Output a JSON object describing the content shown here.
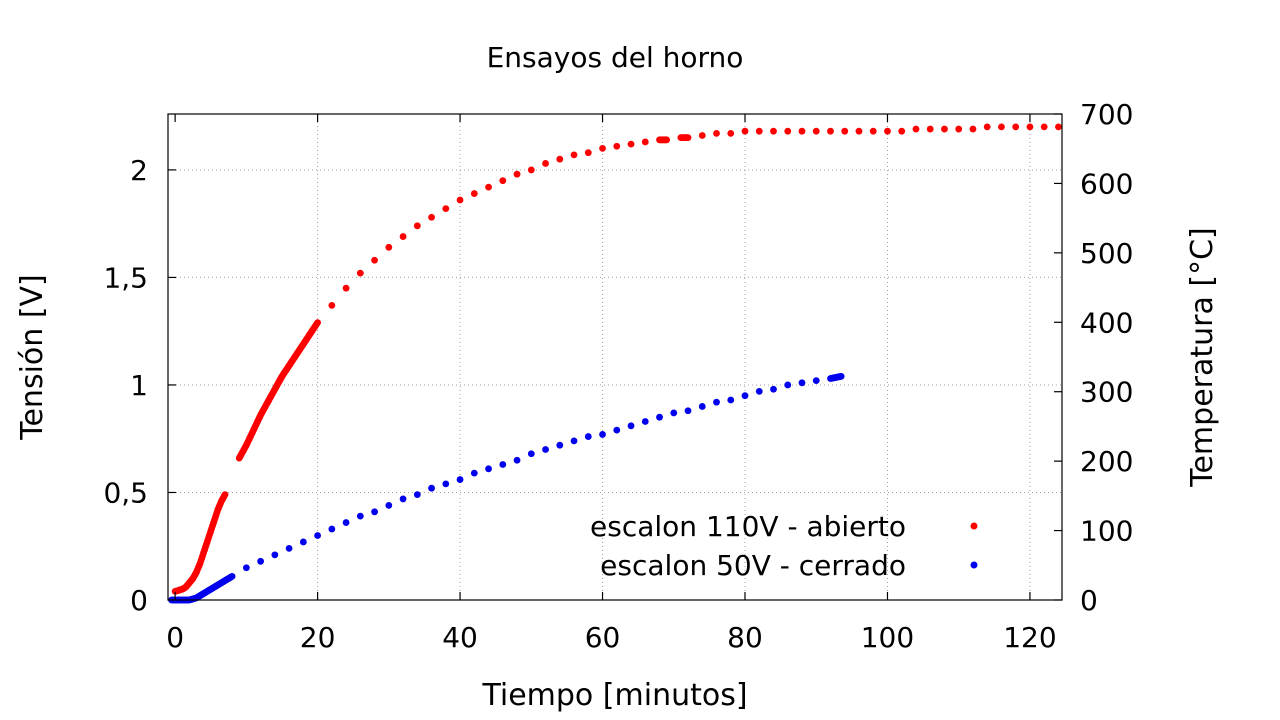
{
  "chart_data": {
    "type": "scatter",
    "title": "Ensayos del horno",
    "xlabel": "Tiempo [minutos]",
    "ylabel": "Tensión [V]",
    "y2label": "Temperatura [°C]",
    "xlim": [
      -1,
      124.5
    ],
    "ylim": [
      0,
      2.26
    ],
    "y2lim": [
      0,
      700
    ],
    "grid": true,
    "legend_position": "bottom-right",
    "x_ticks": [
      {
        "value": 0,
        "label": "0"
      },
      {
        "value": 20,
        "label": "20"
      },
      {
        "value": 40,
        "label": "40"
      },
      {
        "value": 60,
        "label": "60"
      },
      {
        "value": 80,
        "label": "80"
      },
      {
        "value": 100,
        "label": "100"
      },
      {
        "value": 120,
        "label": "120"
      }
    ],
    "y_ticks": [
      {
        "value": 0,
        "label": "0"
      },
      {
        "value": 0.5,
        "label": "0,5"
      },
      {
        "value": 1,
        "label": "1"
      },
      {
        "value": 1.5,
        "label": "1,5"
      },
      {
        "value": 2,
        "label": "2"
      }
    ],
    "y2_ticks": [
      {
        "value": 0,
        "label": "0"
      },
      {
        "value": 100,
        "label": "100"
      },
      {
        "value": 200,
        "label": "200"
      },
      {
        "value": 300,
        "label": "300"
      },
      {
        "value": 400,
        "label": "400"
      },
      {
        "value": 500,
        "label": "500"
      },
      {
        "value": 600,
        "label": "600"
      },
      {
        "value": 700,
        "label": "700"
      }
    ],
    "series": [
      {
        "name": "escalon 110V - abierto",
        "color": "#ff0000",
        "x": [
          0,
          0.5,
          1,
          1.5,
          2,
          2.5,
          3,
          3.5,
          4,
          4.5,
          5,
          5.5,
          6,
          6.5,
          7,
          9,
          10,
          11,
          12,
          13,
          14,
          15,
          16,
          17,
          18,
          19,
          20,
          22,
          24,
          26,
          28,
          30,
          32,
          34,
          36,
          38,
          40,
          42,
          44,
          46,
          48,
          50,
          52,
          54,
          56,
          58,
          60,
          62,
          64,
          66,
          68,
          69,
          71,
          72,
          74,
          76,
          78,
          80,
          82,
          84,
          86,
          88,
          90,
          92,
          94,
          96,
          98,
          100,
          102,
          104,
          106,
          108,
          110,
          112,
          114,
          116,
          118,
          120,
          122,
          124
        ],
        "y": [
          0.04,
          0.045,
          0.05,
          0.06,
          0.08,
          0.1,
          0.13,
          0.17,
          0.22,
          0.27,
          0.32,
          0.37,
          0.42,
          0.46,
          0.49,
          0.66,
          0.72,
          0.79,
          0.86,
          0.92,
          0.98,
          1.04,
          1.09,
          1.14,
          1.19,
          1.24,
          1.29,
          1.37,
          1.45,
          1.52,
          1.58,
          1.64,
          1.69,
          1.74,
          1.78,
          1.82,
          1.86,
          1.89,
          1.92,
          1.95,
          1.98,
          2.0,
          2.03,
          2.05,
          2.07,
          2.08,
          2.1,
          2.11,
          2.12,
          2.13,
          2.14,
          2.14,
          2.15,
          2.15,
          2.16,
          2.17,
          2.17,
          2.18,
          2.18,
          2.18,
          2.18,
          2.18,
          2.18,
          2.18,
          2.18,
          2.18,
          2.18,
          2.18,
          2.18,
          2.19,
          2.19,
          2.19,
          2.19,
          2.19,
          2.2,
          2.2,
          2.2,
          2.2,
          2.2,
          2.2
        ]
      },
      {
        "name": "escalon 50V - cerrado",
        "color": "#0000ee",
        "x": [
          -0.5,
          0,
          1,
          2,
          3,
          4,
          5,
          6,
          7,
          8,
          10,
          12,
          14,
          16,
          18,
          20,
          22,
          24,
          26,
          28,
          30,
          32,
          34,
          36,
          38,
          40,
          42,
          44,
          46,
          48,
          50,
          52,
          54,
          56,
          58,
          60,
          62,
          64,
          66,
          68,
          70,
          72,
          74,
          76,
          78,
          80,
          82,
          84,
          86,
          88,
          90,
          92,
          93.5
        ],
        "y": [
          0.0,
          0.0,
          0.0,
          0.0,
          0.01,
          0.03,
          0.05,
          0.07,
          0.09,
          0.11,
          0.15,
          0.18,
          0.21,
          0.24,
          0.27,
          0.3,
          0.33,
          0.36,
          0.39,
          0.41,
          0.44,
          0.47,
          0.49,
          0.52,
          0.54,
          0.56,
          0.59,
          0.61,
          0.63,
          0.65,
          0.68,
          0.7,
          0.72,
          0.74,
          0.76,
          0.77,
          0.79,
          0.81,
          0.83,
          0.85,
          0.87,
          0.88,
          0.9,
          0.92,
          0.93,
          0.95,
          0.97,
          0.98,
          1.0,
          1.01,
          1.02,
          1.03,
          1.04
        ]
      }
    ]
  }
}
